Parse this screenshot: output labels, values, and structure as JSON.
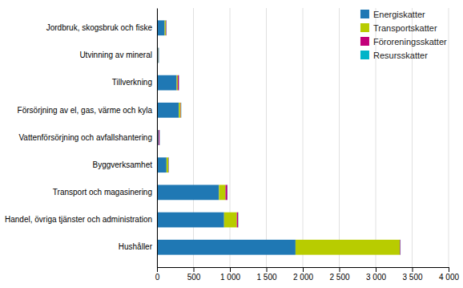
{
  "chart_data": {
    "type": "bar",
    "orientation": "horizontal",
    "stacked": true,
    "categories": [
      "Hushåller",
      "Handel, övriga tjänster och administration",
      "Transport och magasinering",
      "Byggverksamhet",
      "Vattenförsörjning och avfallshantering",
      "Försörjning av el, gas, värme och kyla",
      "Tillverkning",
      "Utvinning av mineral",
      "Jordbruk, skogsbruk och fiske"
    ],
    "series": [
      {
        "name": "Energiskatter",
        "color": "#1f78b4",
        "values": [
          1900,
          920,
          850,
          130,
          20,
          300,
          270,
          18,
          105
        ]
      },
      {
        "name": "Transportskatter",
        "color": "#b8cc00",
        "values": [
          1430,
          175,
          90,
          25,
          3,
          25,
          15,
          3,
          15
        ]
      },
      {
        "name": "Föroreningsskatter",
        "color": "#c2007a",
        "values": [
          8,
          18,
          25,
          5,
          12,
          5,
          15,
          3,
          8
        ]
      },
      {
        "name": "Resursskatter",
        "color": "#00b4c8",
        "values": [
          3,
          3,
          3,
          3,
          3,
          3,
          3,
          3,
          3
        ]
      }
    ],
    "xlim": [
      0,
      4000
    ],
    "xticks": [
      0,
      500,
      {
        "value": 1000,
        "label": "1 000"
      },
      {
        "value": 1500,
        "label": "1 500"
      },
      {
        "value": 2000,
        "label": "2 000"
      },
      {
        "value": 2500,
        "label": "2 500"
      },
      {
        "value": 3000,
        "label": "3 000"
      },
      {
        "value": 3500,
        "label": "3 500"
      },
      {
        "value": 4000,
        "label": "4 000"
      }
    ],
    "grid": true,
    "legend": "upper right"
  }
}
